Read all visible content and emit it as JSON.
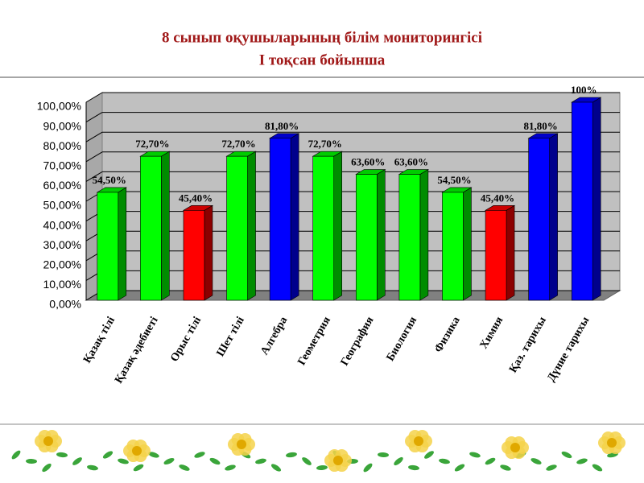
{
  "chart_data": {
    "type": "bar3d",
    "title": "8 сынып оқушыларының білім мониторингісі",
    "subtitle": "І тоқсан бойынша",
    "categories": [
      "Қазақ тілі",
      "Қазақ әдебиеті",
      "Орыс тілі",
      "Шет тілі",
      "Алгебра",
      "Геометрия",
      "География",
      "Биология",
      "Физика",
      "Химия",
      "Қаз. тарихы",
      "Дүние тарихы"
    ],
    "values": [
      54.5,
      72.7,
      45.4,
      72.7,
      81.8,
      72.7,
      63.6,
      63.6,
      54.5,
      45.4,
      81.8,
      100
    ],
    "value_labels": [
      "54,50%",
      "72,70%",
      "45,40%",
      "72,70%",
      "81,80%",
      "72,70%",
      "63,60%",
      "63,60%",
      "54,50%",
      "45,40%",
      "81,80%",
      "100%"
    ],
    "colors": [
      "#00ff00",
      "#00ff00",
      "#ff0000",
      "#00ff00",
      "#0000ff",
      "#00ff00",
      "#00ff00",
      "#00ff00",
      "#00ff00",
      "#ff0000",
      "#0000ff",
      "#0000ff"
    ],
    "ylim": [
      0,
      100
    ],
    "yticks": [
      {
        "value": 0,
        "label": "0,00%"
      },
      {
        "value": 10,
        "label": "10,00%"
      },
      {
        "value": 20,
        "label": "20,00%"
      },
      {
        "value": 30,
        "label": "30,00%"
      },
      {
        "value": 40,
        "label": "40,00%"
      },
      {
        "value": 50,
        "label": "50,00%"
      },
      {
        "value": 60,
        "label": "60,00%"
      },
      {
        "value": 70,
        "label": "70,00%"
      },
      {
        "value": 80,
        "label": "80,00%"
      },
      {
        "value": 90,
        "label": "90,00%"
      },
      {
        "value": 100,
        "label": "100,00%"
      }
    ],
    "grid": true
  }
}
